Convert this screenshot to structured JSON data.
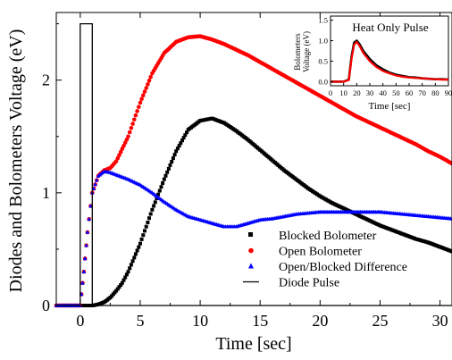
{
  "chart_data": [
    {
      "type": "scatter",
      "title": "",
      "xlabel": "Time [sec]",
      "ylabel": "Diodes and Bolometers Voltage (eV)",
      "xlim": [
        -2,
        31
      ],
      "ylim": [
        0,
        2.6
      ],
      "x_ticks": [
        0,
        5,
        10,
        15,
        20,
        25,
        30
      ],
      "y_ticks": [
        0,
        1,
        2
      ],
      "grid": false,
      "legend_position": "lower-right",
      "series": [
        {
          "name": "Blocked Bolometer",
          "color": "#000000",
          "marker": "square",
          "x": [
            -2,
            0,
            1,
            1.5,
            2,
            2.5,
            3,
            3.5,
            4,
            5,
            6,
            7,
            8,
            9,
            10,
            11,
            12,
            13,
            14,
            15,
            16,
            17,
            18,
            19,
            20,
            21,
            22,
            23,
            24,
            25,
            26,
            27,
            28,
            29,
            30,
            31
          ],
          "values": [
            0,
            0,
            0,
            0.01,
            0.03,
            0.07,
            0.13,
            0.2,
            0.3,
            0.55,
            0.85,
            1.12,
            1.37,
            1.56,
            1.64,
            1.66,
            1.62,
            1.55,
            1.47,
            1.38,
            1.29,
            1.2,
            1.12,
            1.04,
            0.97,
            0.91,
            0.86,
            0.81,
            0.76,
            0.71,
            0.67,
            0.63,
            0.59,
            0.56,
            0.52,
            0.48
          ]
        },
        {
          "name": "Open Bolometer",
          "color": "#ff0000",
          "marker": "circle",
          "x": [
            -2,
            0,
            0.3,
            0.6,
            1,
            1.5,
            2,
            2.5,
            3,
            4,
            5,
            6,
            7,
            8,
            9,
            10,
            11,
            12,
            13,
            14,
            15,
            16,
            17,
            18,
            19,
            20,
            21,
            22,
            23,
            24,
            25,
            26,
            27,
            28,
            29,
            30,
            31
          ],
          "values": [
            0,
            0,
            0.3,
            0.65,
            1.0,
            1.15,
            1.2,
            1.22,
            1.28,
            1.5,
            1.8,
            2.06,
            2.24,
            2.34,
            2.38,
            2.39,
            2.36,
            2.32,
            2.27,
            2.22,
            2.16,
            2.1,
            2.04,
            1.98,
            1.92,
            1.86,
            1.8,
            1.74,
            1.68,
            1.63,
            1.58,
            1.53,
            1.48,
            1.43,
            1.37,
            1.32,
            1.26
          ]
        },
        {
          "name": "Open/Blocked Difference",
          "color": "#0000ff",
          "marker": "triangle",
          "x": [
            -2,
            0,
            0.3,
            0.6,
            1,
            1.5,
            2,
            2.5,
            3,
            4,
            5,
            6,
            7,
            8,
            9,
            10,
            11,
            12,
            13,
            14,
            15,
            16,
            17,
            18,
            19,
            20,
            21,
            22,
            23,
            24,
            25,
            26,
            27,
            28,
            29,
            30,
            31
          ],
          "values": [
            0,
            0,
            0.3,
            0.65,
            1.0,
            1.15,
            1.19,
            1.18,
            1.16,
            1.12,
            1.07,
            1.0,
            0.92,
            0.85,
            0.79,
            0.76,
            0.73,
            0.7,
            0.7,
            0.73,
            0.76,
            0.77,
            0.79,
            0.81,
            0.82,
            0.83,
            0.83,
            0.83,
            0.83,
            0.83,
            0.83,
            0.82,
            0.81,
            0.8,
            0.79,
            0.78,
            0.77
          ]
        },
        {
          "name": "Diode Pulse",
          "color": "#000000",
          "marker": "line",
          "x": [
            -2,
            0,
            0,
            1,
            1,
            31
          ],
          "values": [
            0,
            0,
            2.5,
            2.5,
            0,
            0
          ]
        }
      ]
    },
    {
      "type": "line",
      "title": "Heat Only Pulse",
      "xlabel": "Time [sec]",
      "ylabel": "Bolometers\nVoltage (eV)",
      "xlim": [
        0,
        90
      ],
      "ylim": [
        -0.1,
        1.6
      ],
      "x_ticks": [
        0,
        10,
        20,
        30,
        40,
        50,
        60,
        70,
        80,
        90
      ],
      "y_ticks": [
        0.0,
        0.5,
        1.0,
        1.5
      ],
      "series": [
        {
          "color": "#000000",
          "x": [
            0,
            10,
            14,
            16,
            18,
            20,
            22,
            25,
            30,
            35,
            40,
            45,
            50,
            55,
            60,
            65,
            70,
            75,
            80,
            85,
            90
          ],
          "values": [
            0,
            0,
            0.05,
            0.6,
            0.95,
            1.0,
            0.92,
            0.75,
            0.55,
            0.4,
            0.3,
            0.22,
            0.17,
            0.14,
            0.11,
            0.1,
            0.08,
            0.07,
            0.06,
            0.06,
            0.05
          ]
        },
        {
          "color": "#ff0000",
          "x": [
            0,
            10,
            14,
            16,
            18,
            20,
            22,
            25,
            30,
            35,
            40,
            45,
            50,
            55,
            60,
            65,
            70,
            75,
            80,
            85,
            90
          ],
          "values": [
            0,
            0,
            0.04,
            0.55,
            0.9,
            0.97,
            0.88,
            0.7,
            0.5,
            0.36,
            0.26,
            0.2,
            0.15,
            0.12,
            0.1,
            0.09,
            0.08,
            0.07,
            0.06,
            0.05,
            0.05
          ]
        }
      ]
    }
  ]
}
